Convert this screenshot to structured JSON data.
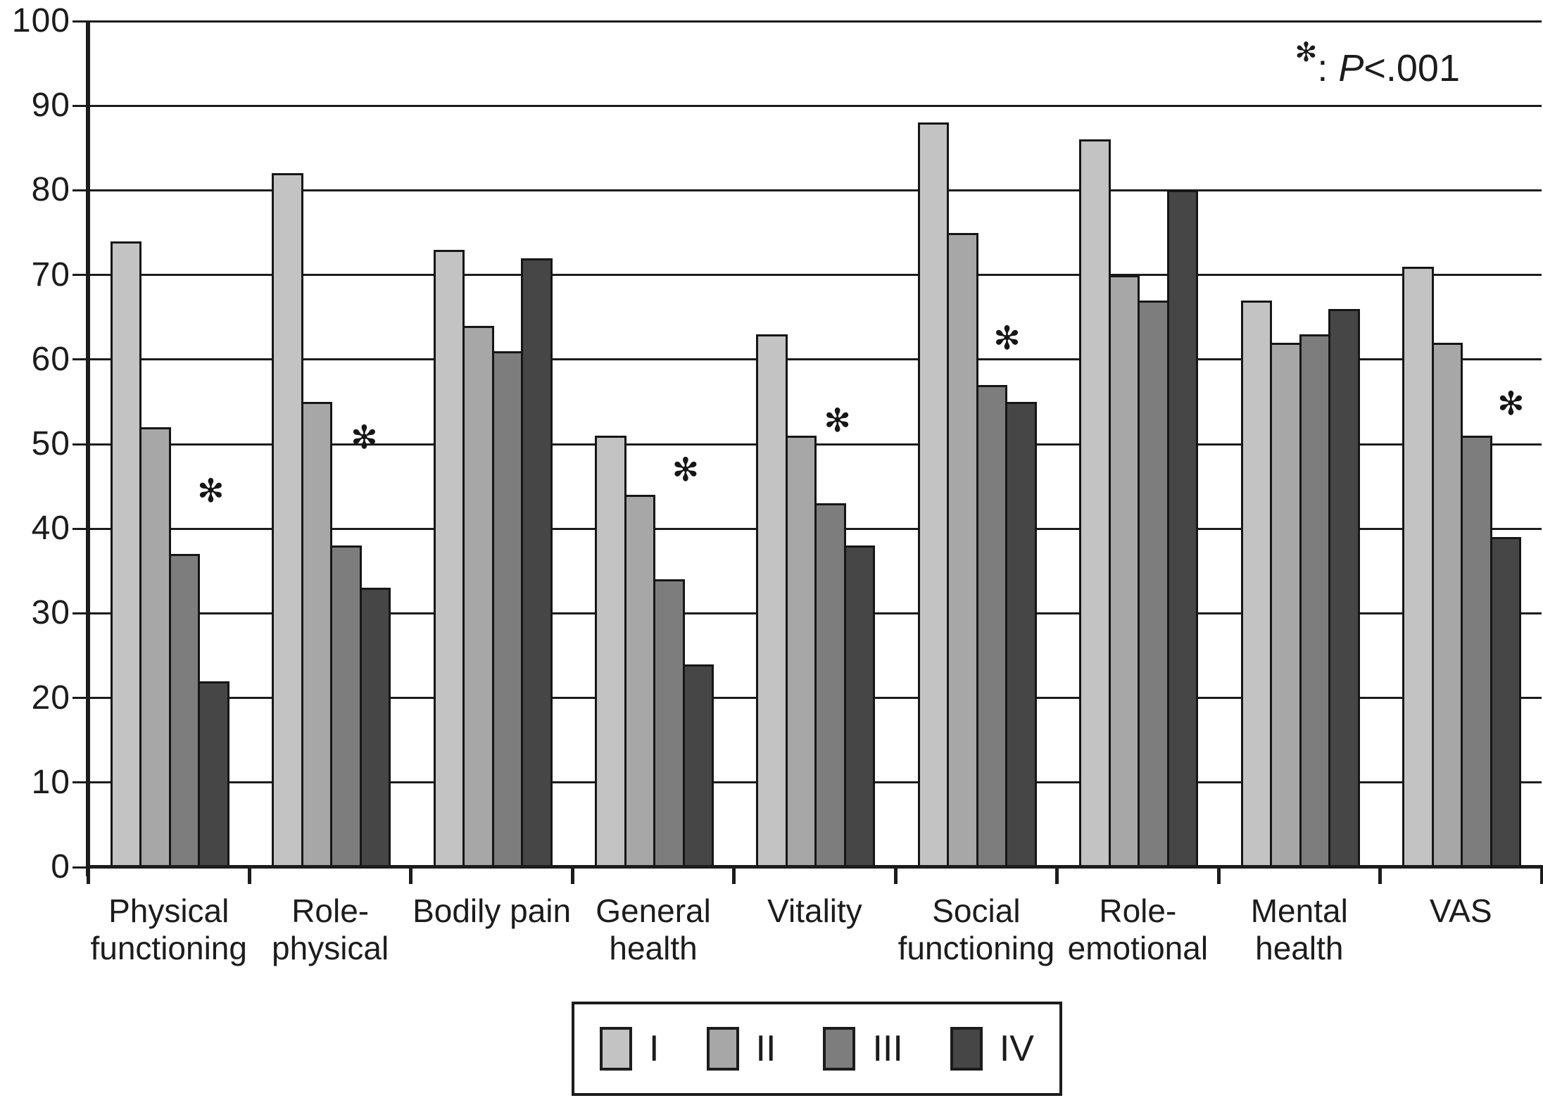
{
  "chart_data": {
    "type": "bar",
    "categories": [
      "Physical\nfunctioning",
      "Role-\nphysical",
      "Bodily pain",
      "General\nhealth",
      "Vitality",
      "Social\nfunctioning",
      "Role-\nemotional",
      "Mental\nhealth",
      "VAS"
    ],
    "series": [
      {
        "name": "I",
        "color": "#c3c3c3",
        "values": [
          74,
          82,
          73,
          51,
          63,
          88,
          86,
          67,
          71
        ]
      },
      {
        "name": "II",
        "color": "#a7a7a7",
        "values": [
          52,
          55,
          64,
          44,
          51,
          75,
          70,
          62,
          62
        ]
      },
      {
        "name": "III",
        "color": "#7d7d7d",
        "values": [
          37,
          38,
          61,
          34,
          43,
          57,
          67,
          63,
          51
        ]
      },
      {
        "name": "IV",
        "color": "#464646",
        "values": [
          22,
          33,
          72,
          24,
          38,
          55,
          80,
          66,
          39
        ]
      }
    ],
    "ylim": [
      0,
      100
    ],
    "ytick_step": 10,
    "yticks": [
      0,
      10,
      20,
      30,
      40,
      50,
      60,
      70,
      80,
      90,
      100
    ],
    "grid": "horizontal",
    "legend_position": "bottom",
    "significance_marks": [
      {
        "category_index": 0,
        "value": 44.5,
        "x_frac": 0.76
      },
      {
        "category_index": 1,
        "value": 50.8,
        "x_frac": 0.71
      },
      {
        "category_index": 3,
        "value": 47.0,
        "x_frac": 0.7
      },
      {
        "category_index": 4,
        "value": 52.8,
        "x_frac": 0.64
      },
      {
        "category_index": 5,
        "value": 62.6,
        "x_frac": 0.69
      },
      {
        "category_index": 8,
        "value": 54.8,
        "x_frac": 0.81
      }
    ],
    "sig_marker": "✻",
    "annotation": {
      "star": "✻",
      "colon": ": ",
      "p": "P",
      "rest": "<.001"
    }
  }
}
